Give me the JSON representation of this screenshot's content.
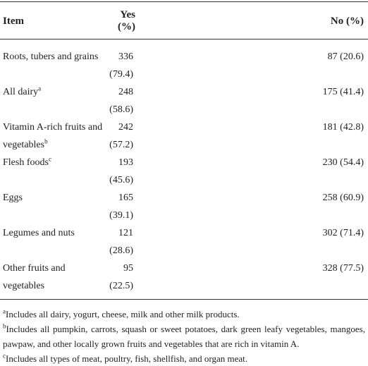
{
  "table": {
    "header": [
      "Item",
      "Yes (%)",
      "No (%)"
    ],
    "rows": [
      {
        "item": "Roots, tubers and grains",
        "yes": "336 (79.4)",
        "no": "87 (20.6)"
      },
      {
        "item": "All dairy",
        "note": "a",
        "yes": "248 (58.6)",
        "no": "175 (41.4)"
      },
      {
        "item": "Vitamin A-rich fruits and vegetables",
        "note": "b",
        "yes": "242 (57.2)",
        "no": "181 (42.8)"
      },
      {
        "item": "Flesh foods",
        "note": "c",
        "yes": "193 (45.6)",
        "no": "230 (54.4)"
      },
      {
        "item": "Eggs",
        "yes": "165 (39.1)",
        "no": "258 (60.9)"
      },
      {
        "item": "Legumes and nuts",
        "yes": "121 (28.6)",
        "no": "302 (71.4)"
      },
      {
        "item": "Other fruits and vegetables",
        "yes": "95 (22.5)",
        "no": "328 (77.5)"
      }
    ]
  },
  "footnotes": [
    {
      "mark": "a",
      "text": "Includes all dairy, yogurt, cheese, milk and other milk products."
    },
    {
      "mark": "b",
      "text": "Includes all pumpkin, carrots, squash or sweet potatoes, dark green leafy vegetables, mangoes, pawpaw, and other locally grown fruits and vegetables that are rich in vitamin A."
    },
    {
      "mark": "c",
      "text": "Includes all types of meat, poultry, fish, shellfish, and organ meat."
    }
  ]
}
